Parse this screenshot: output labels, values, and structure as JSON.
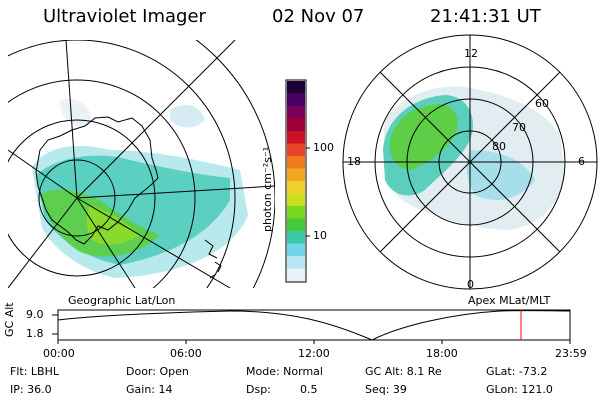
{
  "header": {
    "instrument": "Ultraviolet Imager",
    "date": "02 Nov 07",
    "time": "21:41:31 UT"
  },
  "left_panel": {
    "caption": "Geographic Lat/Lon"
  },
  "right_panel": {
    "caption": "Apex MLat/MLT",
    "mlt_labels": [
      "12",
      "18",
      "6",
      "0"
    ],
    "mlat_labels": [
      "60",
      "70",
      "80"
    ]
  },
  "colorbar": {
    "label": "photon cm⁻²s⁻¹",
    "scale": "log",
    "ticks": [
      "100",
      "10"
    ],
    "colors": [
      "#1a0033",
      "#4a0060",
      "#7a005a",
      "#a0003a",
      "#cc1122",
      "#e8432b",
      "#f07a1e",
      "#f4a623",
      "#f0d02a",
      "#c8e020",
      "#7ad81e",
      "#48c83c",
      "#3ac8a8",
      "#72d6e6",
      "#b6e6f2",
      "#e6f2f6"
    ]
  },
  "timeline": {
    "ylabel": "GC Alt",
    "ymax": "9.0",
    "ymin": "1.8",
    "ticks": [
      "00:00",
      "06:00",
      "12:00",
      "18:00",
      "23:59"
    ],
    "current_time_marker_color": "#ff0000"
  },
  "status": {
    "col1": [
      "Flt: LBHL",
      "IP: 36.0"
    ],
    "col2": [
      "Door: Open",
      "Gain: 14"
    ],
    "col3": [
      "Mode: Normal",
      "Dsp:",
      "0.5"
    ],
    "col4": [
      "GC Alt: 8.1 Re",
      "Seq: 39"
    ],
    "col5": [
      "GLat: -73.2",
      "GLon: 121.0"
    ]
  }
}
